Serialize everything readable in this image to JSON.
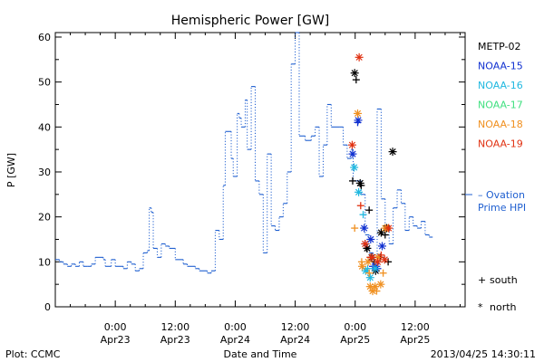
{
  "chart_data": {
    "type": "line",
    "title": "Hemispheric Power [GW]",
    "ylabel": "P [GW]",
    "xlabel": "Date and Time",
    "ylim": [
      0,
      61
    ],
    "x_unit": "hours since Apr22 12:00 UT",
    "xlim": [
      0,
      82
    ],
    "y_ticks": [
      0,
      10,
      20,
      30,
      40,
      50,
      60
    ],
    "x_ticks": [
      {
        "t": 12,
        "line1": "0:00",
        "line2": "Apr23"
      },
      {
        "t": 24,
        "line1": "12:00",
        "line2": "Apr23"
      },
      {
        "t": 36,
        "line1": "0:00",
        "line2": "Apr24"
      },
      {
        "t": 48,
        "line1": "12:00",
        "line2": "Apr24"
      },
      {
        "t": 60,
        "line1": "0:00",
        "line2": "Apr25"
      },
      {
        "t": 72,
        "line1": "12:00",
        "line2": "Apr25"
      }
    ],
    "series": [
      {
        "name": "Ovation Prime HPI",
        "color": "#1f5fd0",
        "style": "step",
        "points": [
          [
            0.0,
            10.5
          ],
          [
            0.8,
            10.0
          ],
          [
            1.6,
            9.5
          ],
          [
            2.4,
            9.0
          ],
          [
            3.2,
            9.5
          ],
          [
            4.0,
            9.0
          ],
          [
            4.8,
            10.0
          ],
          [
            5.6,
            9.0
          ],
          [
            6.4,
            9.0
          ],
          [
            7.2,
            9.5
          ],
          [
            8.0,
            11.0
          ],
          [
            9.6,
            10.5
          ],
          [
            10.0,
            9.0
          ],
          [
            11.2,
            10.5
          ],
          [
            12.0,
            9.0
          ],
          [
            13.6,
            8.5
          ],
          [
            14.4,
            10.0
          ],
          [
            15.2,
            9.5
          ],
          [
            16.0,
            8.0
          ],
          [
            16.8,
            8.5
          ],
          [
            17.6,
            12.0
          ],
          [
            18.4,
            12.5
          ],
          [
            18.8,
            22.0
          ],
          [
            19.2,
            21.0
          ],
          [
            19.6,
            13.0
          ],
          [
            20.4,
            11.0
          ],
          [
            21.2,
            14.0
          ],
          [
            22.0,
            13.5
          ],
          [
            22.8,
            13.0
          ],
          [
            24.0,
            10.5
          ],
          [
            25.6,
            9.5
          ],
          [
            26.4,
            9.0
          ],
          [
            28.0,
            8.5
          ],
          [
            28.8,
            8.0
          ],
          [
            30.4,
            7.5
          ],
          [
            31.2,
            8.0
          ],
          [
            32.0,
            17.0
          ],
          [
            32.8,
            15.0
          ],
          [
            33.6,
            27.0
          ],
          [
            34.0,
            39.0
          ],
          [
            35.2,
            33.0
          ],
          [
            35.6,
            29.0
          ],
          [
            36.4,
            43.0
          ],
          [
            36.8,
            42.0
          ],
          [
            37.2,
            40.0
          ],
          [
            38.0,
            46.0
          ],
          [
            38.4,
            35.0
          ],
          [
            39.2,
            49.0
          ],
          [
            40.0,
            28.0
          ],
          [
            40.8,
            25.0
          ],
          [
            41.6,
            12.0
          ],
          [
            42.4,
            34.0
          ],
          [
            43.2,
            18.0
          ],
          [
            44.0,
            17.0
          ],
          [
            44.8,
            20.0
          ],
          [
            45.6,
            23.0
          ],
          [
            46.4,
            30.0
          ],
          [
            47.2,
            54.0
          ],
          [
            48.0,
            62.0
          ],
          [
            48.8,
            38.0
          ],
          [
            50.0,
            37.0
          ],
          [
            51.2,
            38.0
          ],
          [
            52.0,
            40.0
          ],
          [
            52.8,
            29.0
          ],
          [
            53.6,
            36.0
          ],
          [
            54.4,
            45.0
          ],
          [
            55.2,
            40.0
          ],
          [
            56.8,
            40.0
          ],
          [
            57.6,
            36.0
          ],
          [
            58.4,
            33.0
          ],
          [
            59.2,
            35.0
          ],
          [
            59.6,
            28.0
          ],
          [
            60.4,
            28.0
          ],
          [
            61.2,
            25.0
          ],
          [
            62.0,
            16.0
          ],
          [
            62.8,
            12.0
          ],
          [
            63.6,
            11.0
          ],
          [
            64.4,
            44.0
          ],
          [
            65.2,
            24.0
          ],
          [
            66.0,
            18.0
          ],
          [
            66.8,
            14.0
          ],
          [
            67.6,
            22.0
          ],
          [
            68.4,
            26.0
          ],
          [
            69.2,
            23.0
          ],
          [
            70.0,
            17.0
          ],
          [
            70.8,
            20.0
          ],
          [
            71.6,
            18.0
          ],
          [
            72.4,
            17.5
          ],
          [
            73.2,
            19.0
          ],
          [
            74.0,
            16.0
          ],
          [
            74.8,
            15.5
          ],
          [
            75.5,
            15.5
          ]
        ]
      },
      {
        "name": "METP-02",
        "color": "#000000",
        "style": "markers",
        "south": [
          [
            59.5,
            28
          ],
          [
            60.2,
            50.5
          ],
          [
            61.2,
            27
          ],
          [
            62.3,
            13
          ],
          [
            62.8,
            21.5
          ],
          [
            63.8,
            10
          ],
          [
            65.0,
            11
          ],
          [
            66.0,
            16
          ],
          [
            66.6,
            10
          ]
        ],
        "north": [
          [
            59.9,
            52
          ],
          [
            61.0,
            27.5
          ],
          [
            62.4,
            13
          ],
          [
            63.3,
            11
          ],
          [
            64.1,
            8
          ],
          [
            65.2,
            16.5
          ],
          [
            66.3,
            17.5
          ],
          [
            67.5,
            34.5
          ]
        ]
      },
      {
        "name": "NOAA-15",
        "color": "#1030d0",
        "style": "markers",
        "south": [
          [
            60.5,
            41
          ],
          [
            62.0,
            14
          ],
          [
            63.5,
            9
          ],
          [
            64.5,
            8.5
          ]
        ],
        "north": [
          [
            59.5,
            34
          ],
          [
            60.6,
            41.5
          ],
          [
            61.8,
            17.5
          ],
          [
            63.1,
            15
          ],
          [
            64.2,
            9
          ],
          [
            65.4,
            13.5
          ]
        ]
      },
      {
        "name": "NOAA-16",
        "color": "#20b8e0",
        "style": "markers",
        "south": [
          [
            61.6,
            20.5
          ],
          [
            62.5,
            8.5
          ]
        ],
        "north": [
          [
            59.8,
            31
          ],
          [
            60.7,
            25.5
          ],
          [
            62.1,
            8
          ],
          [
            63.0,
            6.5
          ],
          [
            64.0,
            8.5
          ]
        ]
      },
      {
        "name": "NOAA-17",
        "color": "#40e080",
        "style": "markers",
        "south": [],
        "north": []
      },
      {
        "name": "NOAA-18",
        "color": "#f09020",
        "style": "markers",
        "south": [
          [
            59.9,
            17.5
          ],
          [
            61.3,
            10
          ],
          [
            62.8,
            7.5
          ],
          [
            64.3,
            3.5
          ],
          [
            65.6,
            7.5
          ],
          [
            66.5,
            17.5
          ]
        ],
        "north": [
          [
            60.5,
            43
          ],
          [
            61.4,
            9
          ],
          [
            62.6,
            10
          ],
          [
            63.0,
            4.5
          ],
          [
            63.5,
            3.5
          ],
          [
            64.0,
            4.5
          ],
          [
            64.6,
            11
          ],
          [
            65.1,
            5
          ],
          [
            66.0,
            17.5
          ]
        ]
      },
      {
        "name": "NOAA-19",
        "color": "#e03010",
        "style": "markers",
        "south": [
          [
            61.1,
            22.5
          ],
          [
            63.0,
            11
          ],
          [
            65.2,
            11.5
          ]
        ],
        "north": [
          [
            59.4,
            36
          ],
          [
            60.8,
            55.5
          ],
          [
            62.0,
            14
          ],
          [
            63.4,
            11
          ],
          [
            64.5,
            10
          ],
          [
            65.9,
            10.5
          ],
          [
            66.7,
            17.5
          ]
        ]
      }
    ],
    "legend": [
      "METP-02",
      "NOAA-15",
      "NOAA-16",
      "NOAA-17",
      "NOAA-18",
      "NOAA-19"
    ],
    "legend_placement": "right",
    "ovation_label_line1": "– Ovation",
    "ovation_label_line2": "Prime HPI",
    "marker_key": [
      {
        "symbol": "+",
        "label": "south"
      },
      {
        "symbol": "*",
        "label": "north"
      }
    ]
  },
  "footer": {
    "plot_credit": "Plot: CCMC",
    "xlabel": "Date and Time",
    "timestamp": "2013/04/25 14:30:11"
  }
}
